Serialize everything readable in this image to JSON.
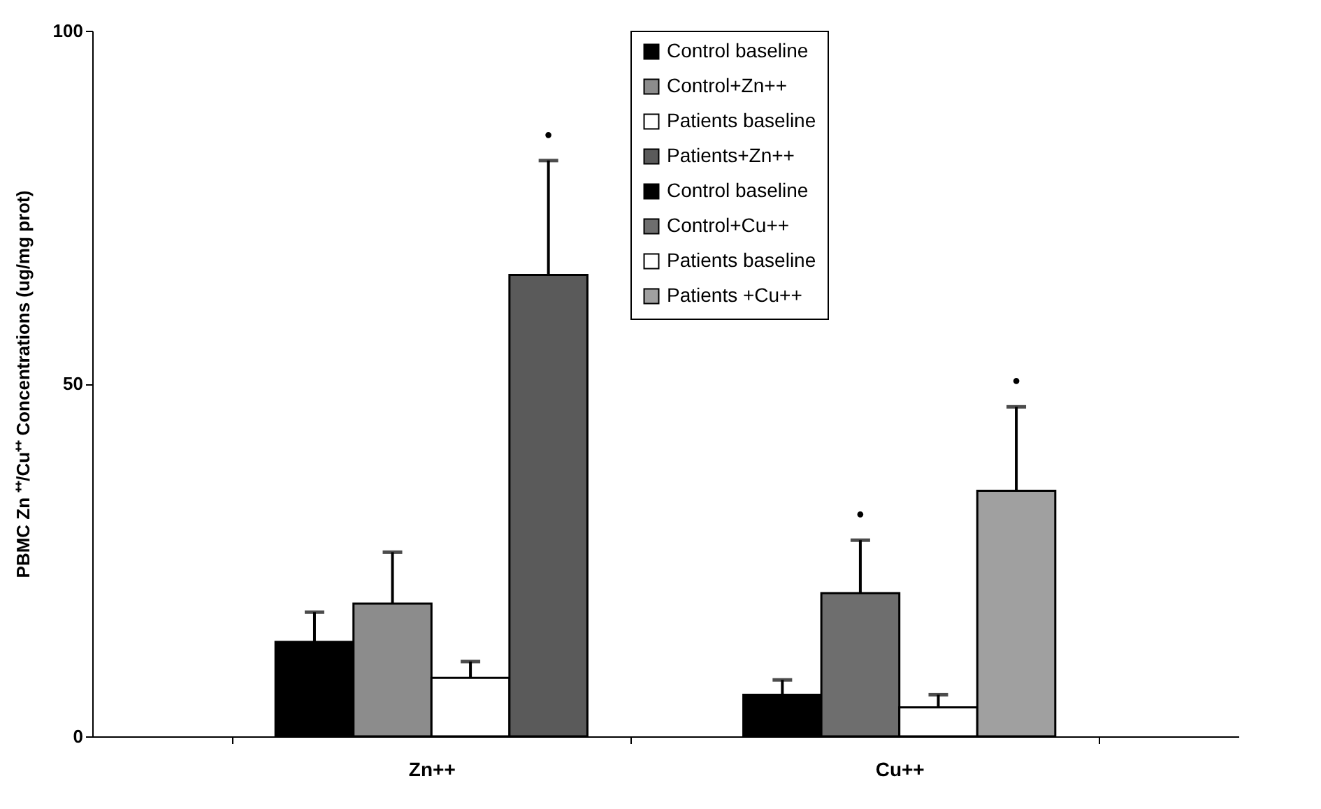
{
  "chart_data": {
    "type": "bar",
    "ylabel": "PBMC Zn ⁺⁺/Cu⁺⁺ Concentrations (ug/mg prot)",
    "categories": [
      "Zn++",
      "Cu++"
    ],
    "ylim": [
      0,
      100
    ],
    "yticks": [
      0,
      50,
      100
    ],
    "grid": false,
    "legend": "top",
    "series": [
      {
        "name": "Control baseline",
        "color": "#000000",
        "values": [
          13.4,
          null
        ],
        "errors": [
          [
            13.4,
            17.6
          ],
          null
        ]
      },
      {
        "name": "Control+Zn++",
        "color": "#8c8c8c",
        "values": [
          18.8,
          null
        ],
        "errors": [
          [
            18.8,
            26.1
          ],
          null
        ]
      },
      {
        "name": "Patients baseline",
        "color": "#ffffff",
        "values": [
          8.3,
          null
        ],
        "errors": [
          [
            8.3,
            10.6
          ],
          null
        ]
      },
      {
        "name": "Patients+Zn++",
        "color": "#5a5a5a",
        "values": [
          65.4,
          null
        ],
        "errors": [
          [
            65.4,
            81.6
          ],
          null
        ]
      },
      {
        "name": "Control baseline",
        "color": "#000000",
        "values": [
          null,
          5.9
        ],
        "errors": [
          null,
          [
            5.9,
            8.0
          ]
        ]
      },
      {
        "name": "Control+Cu++",
        "color": "#6e6e6e",
        "values": [
          null,
          20.3
        ],
        "errors": [
          null,
          [
            20.3,
            27.8
          ]
        ]
      },
      {
        "name": "Patients baseline",
        "color": "#ffffff",
        "values": [
          null,
          4.1
        ],
        "errors": [
          null,
          [
            4.1,
            5.9
          ]
        ]
      },
      {
        "name": "Patients +Cu++",
        "color": "#a0a0a0",
        "values": [
          null,
          34.8
        ],
        "errors": [
          null,
          [
            34.8,
            46.7
          ]
        ]
      }
    ],
    "annotations": [
      "•",
      "•",
      "•"
    ]
  }
}
